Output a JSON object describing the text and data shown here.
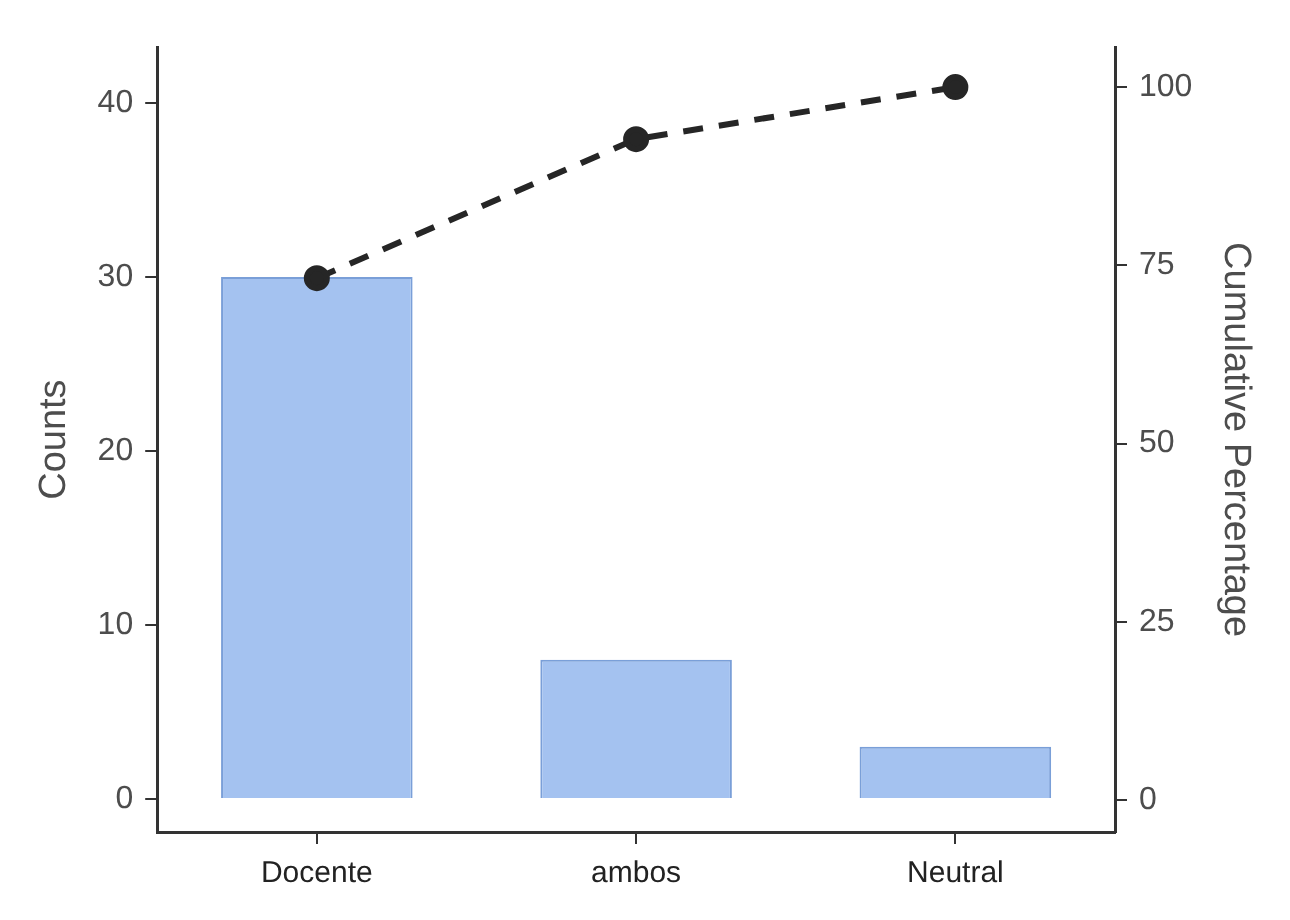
{
  "chart_data": {
    "type": "bar",
    "categories": [
      "Docente",
      "ambos",
      "Neutral"
    ],
    "ylabel": "Counts",
    "y2label": "Cumulative Percentage",
    "ylim": [
      -1.9,
      43.2
    ],
    "yticks": [
      0,
      10,
      20,
      30,
      40
    ],
    "y2lim": [
      -4.5,
      105.6
    ],
    "y2ticks": [
      0,
      25,
      50,
      75,
      100
    ],
    "grid": false,
    "legend": false,
    "marker": "circle",
    "line_style": "dashed",
    "series": [
      {
        "color": "#a4c2f0",
        "values": [
          30,
          8,
          3
        ]
      },
      {
        "type": "line",
        "axis": "y2",
        "color": "#262626",
        "values": [
          73.2,
          92.7,
          100
        ]
      }
    ]
  }
}
